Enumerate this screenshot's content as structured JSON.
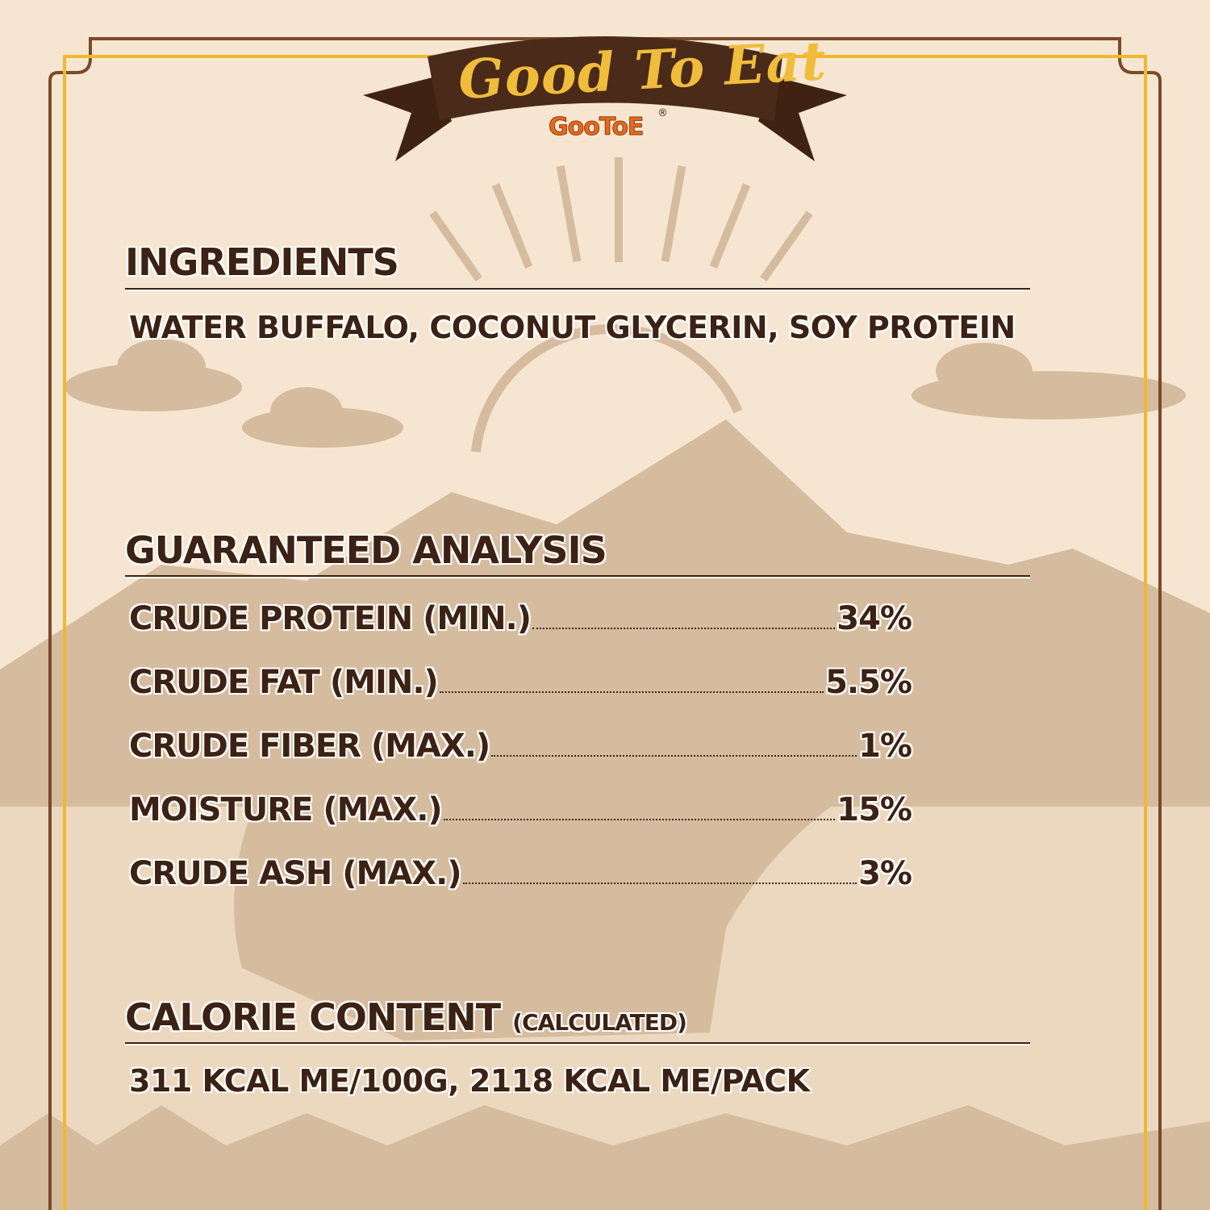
{
  "banner": {
    "title": "Good To Eat",
    "brand": "GooToE",
    "registered_mark": "®"
  },
  "ingredients": {
    "heading": "INGREDIENTS",
    "text": "WATER BUFFALO, COCONUT GLYCERIN, SOY PROTEIN"
  },
  "analysis": {
    "heading": "GUARANTEED ANALYSIS",
    "rows": [
      {
        "label": "CRUDE PROTEIN (MIN.)",
        "value": "34%"
      },
      {
        "label": "CRUDE FAT (MIN.)",
        "value": "5.5%"
      },
      {
        "label": "CRUDE FIBER (MAX.)",
        "value": "1%"
      },
      {
        "label": "MOISTURE (MAX.)",
        "value": "15%"
      },
      {
        "label": "CRUDE ASH (MAX.)",
        "value": "3%"
      }
    ]
  },
  "calories": {
    "heading": "CALORIE CONTENT",
    "qualifier": "(CALCULATED)",
    "text": "311 KCAL ME/100G, 2118 KCAL ME/PACK"
  },
  "colors": {
    "background": "#f6e6d1",
    "text": "#3c2214",
    "frame_brown": "#7a4a2a",
    "frame_gold": "#f0b830",
    "illustration": "#d6bc9e",
    "brand_orange": "#e8691c"
  }
}
